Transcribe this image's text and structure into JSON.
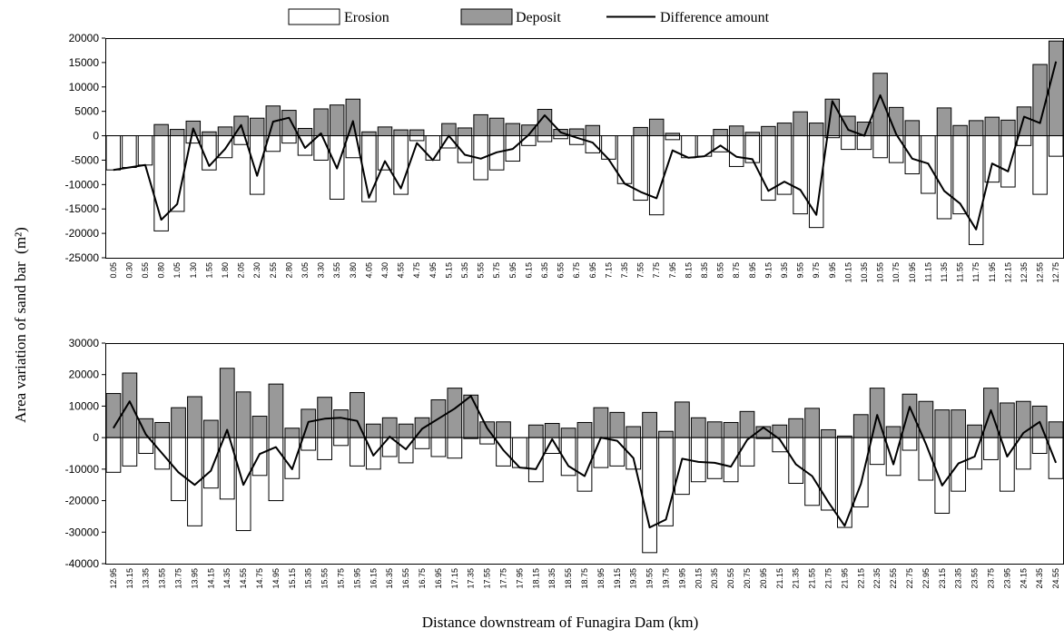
{
  "legend": {
    "erosion_label": "Erosion",
    "deposit_label": "Deposit",
    "difference_label": "Difference amount"
  },
  "ylabel": "Area variation of sand bar (m²)",
  "xlabel": "Distance downstream of Funagira Dam (km)",
  "colors": {
    "erosion_fill": "#ffffff",
    "deposit_fill": "#999999",
    "bar_stroke": "#000000",
    "line": "#000000",
    "axis": "#000000"
  },
  "chart_data": [
    {
      "type": "bar",
      "ylim": [
        -25000,
        20000
      ],
      "yticks": [
        20000,
        15000,
        10000,
        5000,
        0,
        -5000,
        -10000,
        -15000,
        -20000,
        -25000
      ],
      "grid": false,
      "legend_position": "top",
      "categories": [
        "0.05",
        "0.30",
        "0.55",
        "0.80",
        "1.05",
        "1.30",
        "1.55",
        "1.80",
        "2.05",
        "2.30",
        "2.55",
        "2.80",
        "3.05",
        "3.30",
        "3.55",
        "3.80",
        "4.05",
        "4.30",
        "4.55",
        "4.75",
        "4.95",
        "5.15",
        "5.35",
        "5.55",
        "5.75",
        "5.95",
        "6.15",
        "6.35",
        "6.55",
        "6.75",
        "6.95",
        "7.15",
        "7.35",
        "7.55",
        "7.75",
        "7.95",
        "8.15",
        "8.35",
        "8.55",
        "8.75",
        "8.95",
        "9.15",
        "9.35",
        "9.55",
        "9.75",
        "9.95",
        "10.15",
        "10.35",
        "10.55",
        "10.75",
        "10.95",
        "11.15",
        "11.35",
        "11.55",
        "11.75",
        "11.95",
        "12.15",
        "12.35",
        "12.55",
        "12.75"
      ],
      "series": [
        {
          "name": "Erosion",
          "values": [
            -7000,
            -6500,
            -6000,
            -19500,
            -15500,
            -1500,
            -7000,
            -4500,
            -1800,
            -12000,
            -3200,
            -1500,
            -4000,
            -5000,
            -13000,
            -4500,
            -13500,
            -7000,
            -12000,
            -1000,
            -5000,
            -2500,
            -5500,
            -9000,
            -7000,
            -5200,
            -2000,
            -1200,
            -600,
            -1800,
            -3500,
            -4800,
            -9800,
            -13200,
            -16200,
            -800,
            -4500,
            -4200,
            -3300,
            -6300,
            -5500,
            -13200,
            -12000,
            -16000,
            -18800,
            -400,
            -2800,
            -2800,
            -4500,
            -5500,
            -7800,
            -11800,
            -17000,
            -16000,
            -22300,
            -9500,
            -10500,
            -2000,
            -12000,
            -4200
          ]
        },
        {
          "name": "Deposit",
          "values": [
            0,
            0,
            0,
            2300,
            1300,
            3000,
            800,
            1800,
            4000,
            3600,
            6100,
            5200,
            1500,
            5500,
            6300,
            7500,
            800,
            1800,
            1200,
            1200,
            0,
            2500,
            1600,
            4300,
            3600,
            2500,
            2200,
            5400,
            1300,
            1400,
            2100,
            0,
            0,
            1700,
            3400,
            500,
            0,
            0,
            1300,
            2000,
            700,
            1900,
            2600,
            4900,
            2600,
            7500,
            4000,
            2800,
            12800,
            5800,
            3100,
            0,
            5700,
            2100,
            3100,
            3800,
            3200,
            5900,
            14600,
            19400
          ]
        },
        {
          "name": "Difference amount",
          "values": [
            -7000,
            -6500,
            -6000,
            -17200,
            -14000,
            1500,
            -6200,
            -2700,
            2200,
            -8200,
            2900,
            3700,
            -2500,
            500,
            -6700,
            3000,
            -12700,
            -5200,
            -10800,
            -1500,
            -5000,
            0,
            -3900,
            -4700,
            -3400,
            -2700,
            200,
            4200,
            700,
            -400,
            -1400,
            -4800,
            -9800,
            -11500,
            -12800,
            -3000,
            -4500,
            -4200,
            -2000,
            -4300,
            -4800,
            -11300,
            -9400,
            -11100,
            -16200,
            7100,
            1200,
            0,
            8300,
            300,
            -4700,
            -5700,
            -11300,
            -13900,
            -19200,
            -5700,
            -7300,
            3900,
            2600,
            15200
          ]
        }
      ]
    },
    {
      "type": "bar",
      "ylim": [
        -40000,
        30000
      ],
      "yticks": [
        30000,
        20000,
        10000,
        0,
        -10000,
        -20000,
        -30000,
        -40000
      ],
      "grid": false,
      "categories": [
        "12.95",
        "13.15",
        "13.35",
        "13.55",
        "13.75",
        "13.95",
        "14.15",
        "14.35",
        "14.55",
        "14.75",
        "14.95",
        "15.15",
        "15.35",
        "15.55",
        "15.75",
        "15.95",
        "16.15",
        "16.35",
        "16.55",
        "16.75",
        "16.95",
        "17.15",
        "17.35",
        "17.55",
        "17.75",
        "17.95",
        "18.15",
        "18.35",
        "18.55",
        "18.75",
        "18.95",
        "19.15",
        "19.35",
        "19.55",
        "19.75",
        "19.95",
        "20.15",
        "20.35",
        "20.55",
        "20.75",
        "20.95",
        "21.15",
        "21.35",
        "21.55",
        "21.75",
        "21.95",
        "22.15",
        "22.35",
        "22.55",
        "22.75",
        "22.95",
        "23.15",
        "23.35",
        "23.55",
        "23.75",
        "23.95",
        "24.15",
        "24.35",
        "24.55"
      ],
      "series": [
        {
          "name": "Erosion",
          "values": [
            -11000,
            -9000,
            -5000,
            -10000,
            -20000,
            -28000,
            -16000,
            -19500,
            -29500,
            -12000,
            -20000,
            -13000,
            -4000,
            -7000,
            -2500,
            -9000,
            -10000,
            -6000,
            -8000,
            -3500,
            -6000,
            -6500,
            -300,
            -2000,
            -9000,
            -9500,
            -14000,
            -5000,
            -12000,
            -17000,
            -9500,
            -9000,
            -10000,
            -36500,
            -28000,
            -18000,
            -14000,
            -13000,
            -14000,
            -9000,
            -300,
            -4500,
            -14500,
            -21500,
            -23000,
            -28500,
            -22000,
            -8500,
            -12000,
            -4000,
            -13500,
            -24000,
            -17000,
            -10000,
            -7000,
            -17000,
            -10000,
            -5000,
            -13000
          ]
        },
        {
          "name": "Deposit",
          "values": [
            14000,
            20500,
            6000,
            4800,
            9500,
            13000,
            5500,
            22000,
            14500,
            6800,
            17000,
            3000,
            9000,
            12800,
            8800,
            14300,
            4300,
            6300,
            4300,
            6300,
            12000,
            15700,
            13500,
            5000,
            5000,
            0,
            4000,
            4500,
            3000,
            4800,
            9500,
            8000,
            3500,
            8000,
            2000,
            11300,
            6300,
            5000,
            4800,
            8300,
            3500,
            4000,
            6000,
            9300,
            2500,
            500,
            7300,
            15700,
            3500,
            13800,
            11500,
            8800,
            8800,
            4000,
            15700,
            11000,
            11500,
            10000,
            5000
          ]
        },
        {
          "name": "Difference amount",
          "values": [
            3000,
            11500,
            1000,
            -5000,
            -11000,
            -15000,
            -10500,
            2500,
            -15000,
            -5200,
            -3000,
            -10000,
            5000,
            6000,
            6300,
            5300,
            -5700,
            300,
            -3700,
            2800,
            6000,
            9200,
            13200,
            3000,
            -4000,
            -9500,
            -10000,
            -500,
            -9000,
            -12200,
            0,
            -1000,
            -6500,
            -28500,
            -26000,
            -6700,
            -7700,
            -8000,
            -9200,
            -700,
            3200,
            -500,
            -8500,
            -12200,
            -20500,
            -28000,
            -14700,
            7200,
            -8500,
            9800,
            -2000,
            -15200,
            -8200,
            -6000,
            8700,
            -6000,
            1500,
            5000,
            -8000
          ]
        }
      ]
    }
  ]
}
